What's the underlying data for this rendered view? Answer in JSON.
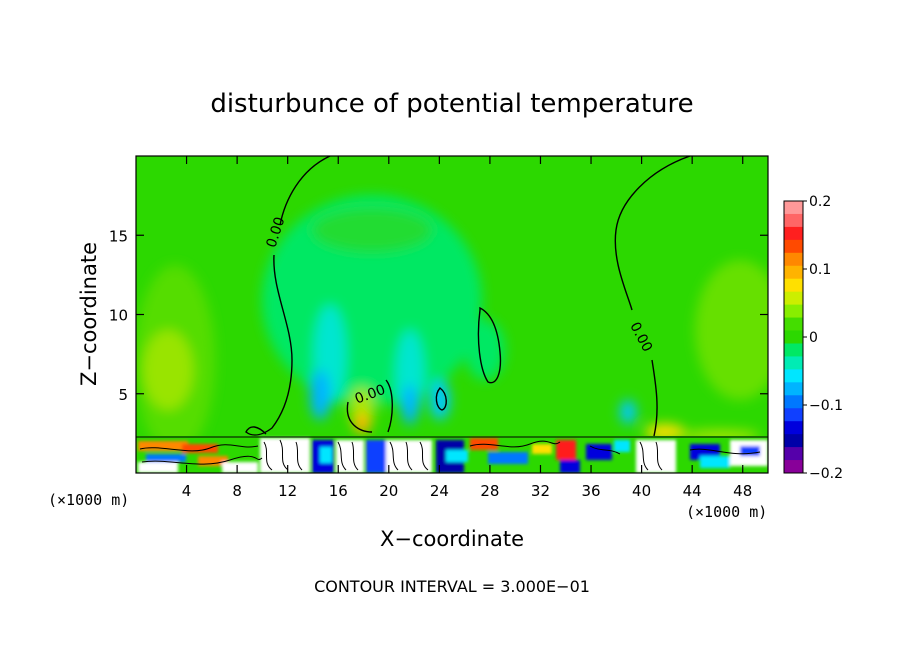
{
  "chart_data": {
    "type": "heatmap",
    "title": "disturbunce of potential temperature",
    "xlabel": "X−coordinate",
    "ylabel": "Z−coordinate",
    "x_unit_left": "(×1000 m)",
    "x_unit_right": "(×1000 m)",
    "xlim": [
      0,
      50
    ],
    "ylim": [
      0,
      20
    ],
    "x_ticks": [
      4,
      8,
      12,
      16,
      20,
      24,
      28,
      32,
      36,
      40,
      44,
      48
    ],
    "x_tick_labels": [
      "4",
      "8",
      "12",
      "16",
      "20",
      "24",
      "28",
      "32",
      "36",
      "40",
      "44",
      "48"
    ],
    "y_ticks": [
      5,
      10,
      15
    ],
    "y_tick_labels": [
      "5",
      "10",
      "15"
    ],
    "colorbar": {
      "range": [
        -0.2,
        0.2
      ],
      "ticks": [
        0.2,
        0.1,
        0,
        -0.1,
        -0.2
      ],
      "tick_labels": [
        "0.2",
        "0.1",
        "0",
        "−0.1",
        "−0.2"
      ],
      "colors": [
        "#ff9999",
        "#ff6666",
        "#ff1f1f",
        "#ff4a00",
        "#ff8800",
        "#ffb300",
        "#ffe000",
        "#ccee00",
        "#88ee00",
        "#44dd00",
        "#2cd800",
        "#00e864",
        "#00ecb4",
        "#00e6ff",
        "#00b4ff",
        "#0078ff",
        "#1040ff",
        "#0000dd",
        "#0000a8",
        "#5500aa",
        "#880099"
      ]
    },
    "contour_labels": [
      {
        "text": "0.00",
        "x": 11.0,
        "y": 15.2
      },
      {
        "text": "0.00",
        "x": 18.5,
        "y": 5.0
      },
      {
        "text": "0.00",
        "x": 40.0,
        "y": 8.6
      }
    ],
    "contour_interval_text": "CONTOUR INTERVAL = 3.000E−01"
  }
}
